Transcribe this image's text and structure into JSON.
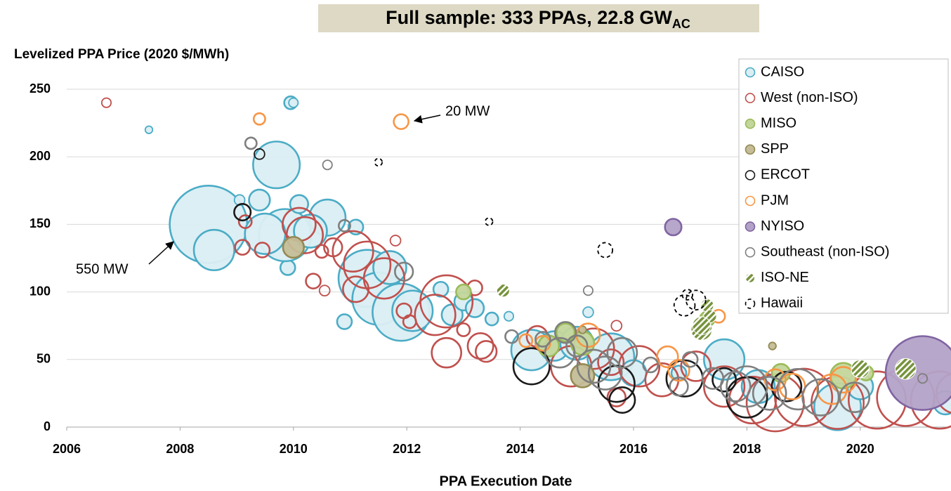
{
  "chart_data": {
    "type": "scatter",
    "title": "Full sample: 333 PPAs, 22.8 GW",
    "title_subscript": "AC",
    "ylabel": "Levelized PPA Price (2020 $/MWh)",
    "xlabel": "PPA Execution Date",
    "annotations": [
      "20 MW",
      "550 MW"
    ],
    "xlim": [
      2006,
      2021.8
    ],
    "xticks": [
      2006,
      2008,
      2010,
      2012,
      2014,
      2016,
      2018,
      2020
    ],
    "ylim": [
      0,
      250
    ],
    "yticks": [
      0,
      50,
      100,
      150,
      200,
      250
    ],
    "grid": true,
    "legend": "upper right",
    "series": [
      {
        "name": "CAISO",
        "color": "#4bacc6",
        "fill": "#daeef3",
        "x": [
          2007.45,
          2008.5,
          2008.6,
          2009.7,
          2009.95,
          2010,
          2009.4,
          2009.9,
          2009.85,
          2009.5,
          2010.1,
          2010.6,
          2010.3,
          2009.05,
          2011.3,
          2011.5,
          2011.9,
          2012.1,
          2011.7,
          2010.9,
          2011.1,
          2012.6,
          2012.8,
          2013.0,
          2013.2,
          2013.5,
          2013.8,
          2014.2,
          2014.6,
          2015.0,
          2015.2,
          2015.6,
          2016.0,
          2017.6,
          2018.2,
          2019.6,
          2020.0,
          2021.5,
          2016.8
        ],
        "y": [
          220,
          150,
          131,
          194,
          240,
          240,
          168,
          118,
          142,
          143,
          165,
          155,
          145,
          168,
          110,
          95,
          85,
          86,
          118,
          78,
          148,
          102,
          83,
          93,
          88,
          80,
          82,
          57,
          60,
          62,
          85,
          52,
          40,
          50,
          30,
          15,
          30,
          18,
          40
        ],
        "size": [
          5,
          550,
          150,
          200,
          15,
          8,
          40,
          20,
          250,
          150,
          30,
          120,
          100,
          10,
          300,
          250,
          300,
          150,
          100,
          20,
          20,
          20,
          40,
          30,
          30,
          15,
          8,
          150,
          80,
          100,
          10,
          200,
          60,
          150,
          100,
          200,
          60,
          50,
          20
        ]
      },
      {
        "name": "West (non-ISO)",
        "color": "#c0504d",
        "x": [
          2006.7,
          2009.15,
          2009.1,
          2009.45,
          2010.1,
          2010.2,
          2010.35,
          2010.55,
          2010.7,
          2010.5,
          2011.05,
          2011.3,
          2011.6,
          2011.95,
          2012.05,
          2011.8,
          2011.1,
          2012.7,
          2012.5,
          2013.2,
          2013.3,
          2013.0,
          2013.4,
          2012.7,
          2014.3,
          2014.9,
          2015.3,
          2015.6,
          2015.7,
          2016.1,
          2016.5,
          2017.1,
          2017.6,
          2018.1,
          2018.5,
          2019.0,
          2019.6,
          2020.3,
          2020.8,
          2021.4,
          2021.7,
          2015.7
        ],
        "y": [
          240,
          152,
          133,
          131,
          150,
          142,
          108,
          101,
          133,
          130,
          130,
          120,
          110,
          86,
          78,
          138,
          102,
          93,
          83,
          103,
          60,
          72,
          56,
          55,
          67,
          45,
          58,
          48,
          22,
          45,
          35,
          45,
          30,
          20,
          18,
          22,
          18,
          20,
          22,
          20,
          25,
          75
        ],
        "size": [
          8,
          15,
          20,
          20,
          100,
          120,
          20,
          10,
          30,
          15,
          150,
          200,
          150,
          20,
          15,
          10,
          60,
          250,
          150,
          20,
          60,
          15,
          40,
          80,
          40,
          150,
          150,
          60,
          30,
          150,
          100,
          80,
          150,
          200,
          300,
          300,
          250,
          300,
          300,
          300,
          150,
          10
        ]
      },
      {
        "name": "MISO",
        "color": "#9bbb59",
        "fill": "#c3d69b",
        "x": [
          2013.0,
          2014.5,
          2014.8,
          2015.1,
          2017.3,
          2018.6,
          2019.7,
          2020.1
        ],
        "y": [
          100,
          60,
          70,
          62,
          80,
          40,
          38,
          40
        ],
        "size": [
          20,
          40,
          30,
          50,
          20,
          30,
          60,
          20
        ]
      },
      {
        "name": "SPP",
        "color": "#948a54",
        "fill": "#c4bd97",
        "x": [
          2010.0,
          2015.1,
          2018.45,
          2015.1
        ],
        "y": [
          133,
          38,
          60,
          72
        ],
        "size": [
          40,
          50,
          5,
          5
        ]
      },
      {
        "name": "ERCOT",
        "color": "#1a1a1a",
        "x": [
          2009.1,
          2009.4,
          2014.2,
          2015.7,
          2015.8,
          2016.9,
          2017.6,
          2018.0,
          2018.7
        ],
        "y": [
          159,
          202,
          45,
          32,
          20,
          36,
          35,
          22,
          30
        ],
        "size": [
          25,
          10,
          120,
          120,
          60,
          120,
          50,
          150,
          80
        ]
      },
      {
        "name": "PJM",
        "color": "#f79646",
        "x": [
          2009.4,
          2011.9,
          2014.1,
          2014.4,
          2015.2,
          2016.6,
          2016.8,
          2017.5,
          2018.5,
          2018.8,
          2019.5,
          2019.7
        ],
        "y": [
          228,
          226,
          64,
          62,
          68,
          52,
          42,
          82,
          35,
          30,
          28,
          35
        ],
        "size": [
          12,
          20,
          15,
          20,
          50,
          40,
          40,
          15,
          40,
          60,
          80,
          60
        ]
      },
      {
        "name": "NYISO",
        "color": "#8064a2",
        "fill": "#b3a2c7",
        "x": [
          2016.7,
          2021.1
        ],
        "y": [
          148,
          40
        ],
        "size": [
          25,
          500
        ]
      },
      {
        "name": "Southeast (non-ISO)",
        "color": "#7f7f7f",
        "x": [
          2009.25,
          2010.6,
          2010.9,
          2011.95,
          2013.85,
          2014.4,
          2014.8,
          2014.7,
          2015.0,
          2015.3,
          2015.2,
          2015.5,
          2015.8,
          2016.3,
          2017.0,
          2017.4,
          2017.8,
          2018.0,
          2018.4,
          2018.9,
          2019.3,
          2019.9,
          2021.1,
          2016.8
        ],
        "y": [
          210,
          194,
          149,
          115,
          67,
          65,
          70,
          55,
          60,
          45,
          101,
          40,
          55,
          46,
          50,
          36,
          30,
          30,
          25,
          28,
          22,
          22,
          36,
          30
        ],
        "size": [
          12,
          8,
          12,
          30,
          15,
          20,
          40,
          80,
          40,
          100,
          8,
          100,
          80,
          20,
          20,
          40,
          80,
          150,
          100,
          150,
          120,
          80,
          8,
          30
        ]
      },
      {
        "name": "ISO-NE",
        "color": "#77933c",
        "pattern": "hatch",
        "x": [
          2013.7,
          2017.2,
          2017.3,
          2017.35,
          2020.0,
          2020.8,
          2017.2
        ],
        "y": [
          101,
          72,
          90,
          82,
          43,
          43,
          75
        ],
        "size": [
          15,
          40,
          15,
          15,
          30,
          40,
          30
        ]
      },
      {
        "name": "Hawaii",
        "color": "#000000",
        "pattern": "dashed",
        "x": [
          2011.5,
          2013.45,
          2015.5,
          2016.95,
          2016.9,
          2017.1
        ],
        "y": [
          196,
          152,
          131,
          98,
          90,
          94
        ],
        "size": [
          5,
          5,
          20,
          10,
          40,
          35
        ]
      }
    ]
  }
}
